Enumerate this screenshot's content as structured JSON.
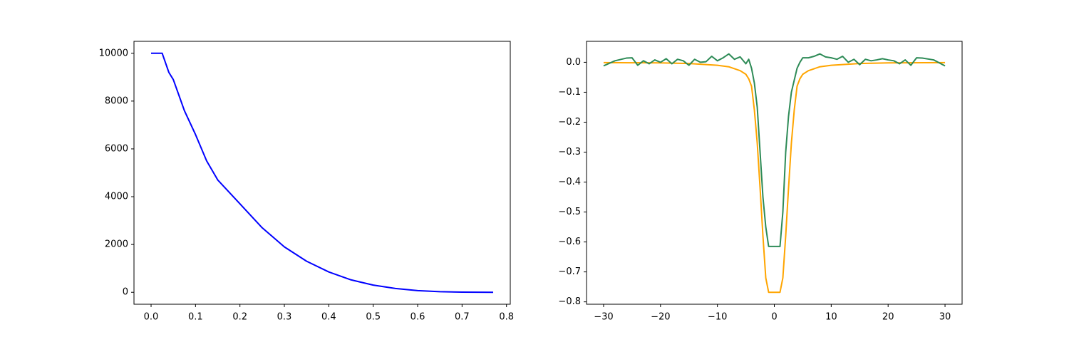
{
  "chart_data": [
    {
      "type": "line",
      "x": [
        0,
        0.025,
        0.04,
        0.05,
        0.075,
        0.1,
        0.125,
        0.15,
        0.175,
        0.2,
        0.25,
        0.3,
        0.35,
        0.4,
        0.45,
        0.5,
        0.55,
        0.6,
        0.65,
        0.7,
        0.77
      ],
      "series": [
        {
          "color": "#0000ff",
          "values": [
            10000,
            10000,
            9200,
            8900,
            7600,
            6600,
            5500,
            4700,
            4200,
            3700,
            2700,
            1900,
            1300,
            850,
            520,
            300,
            160,
            70,
            25,
            5,
            0
          ]
        }
      ],
      "xlim": [
        -0.0385,
        0.8085
      ],
      "xticks": [
        {
          "value": 0,
          "label": "0.0"
        },
        {
          "value": 0.1,
          "label": "0.1"
        },
        {
          "value": 0.2,
          "label": "0.2"
        },
        {
          "value": 0.3,
          "label": "0.3"
        },
        {
          "value": 0.4,
          "label": "0.4"
        },
        {
          "value": 0.5,
          "label": "0.5"
        },
        {
          "value": 0.6,
          "label": "0.6"
        },
        {
          "value": 0.7,
          "label": "0.7"
        },
        {
          "value": 0.8,
          "label": "0.8"
        }
      ],
      "ylim": [
        -500,
        10500
      ],
      "yticks": [
        0,
        2000,
        4000,
        6000,
        8000,
        10000
      ]
    },
    {
      "type": "line",
      "series": [
        {
          "color": "#ffa500",
          "x": [
            -30,
            -20,
            -15,
            -10,
            -8,
            -6,
            -5,
            -4.5,
            -4,
            -3.5,
            -3,
            -2.5,
            -2,
            -1.5,
            -1,
            1,
            1.5,
            2,
            2.5,
            3,
            3.5,
            4,
            4.5,
            5,
            6,
            8,
            10,
            15,
            20,
            30
          ],
          "values": [
            -0.001,
            -0.002,
            -0.004,
            -0.01,
            -0.015,
            -0.028,
            -0.04,
            -0.055,
            -0.08,
            -0.16,
            -0.27,
            -0.42,
            -0.58,
            -0.72,
            -0.768,
            -0.768,
            -0.72,
            -0.58,
            -0.42,
            -0.27,
            -0.16,
            -0.08,
            -0.055,
            -0.04,
            -0.028,
            -0.015,
            -0.01,
            -0.004,
            -0.002,
            -0.001
          ]
        },
        {
          "color": "#2e8b57",
          "x": [
            -30,
            -28,
            -26,
            -25,
            -24,
            -23,
            -22,
            -21,
            -20,
            -19,
            -18,
            -17,
            -16,
            -15,
            -14,
            -13,
            -12,
            -11,
            -10,
            -9,
            -8,
            -7,
            -6,
            -5,
            -4.5,
            -4,
            -3.5,
            -3,
            -2.5,
            -2,
            -1.5,
            -1,
            1,
            1.5,
            2,
            2.5,
            3,
            3.5,
            4,
            4.5,
            5,
            6,
            7,
            8,
            9,
            10,
            11,
            12,
            13,
            14,
            15,
            16,
            17,
            18,
            19,
            20,
            21,
            22,
            23,
            24,
            25,
            26,
            28,
            30
          ],
          "values": [
            -0.012,
            0.005,
            0.014,
            0.015,
            -0.01,
            0.005,
            -0.005,
            0.008,
            0.0,
            0.012,
            -0.005,
            0.01,
            0.005,
            -0.01,
            0.01,
            0.0,
            0.002,
            0.02,
            0.005,
            0.015,
            0.028,
            0.01,
            0.018,
            -0.005,
            0.01,
            -0.02,
            -0.07,
            -0.15,
            -0.3,
            -0.45,
            -0.55,
            -0.615,
            -0.615,
            -0.5,
            -0.3,
            -0.18,
            -0.1,
            -0.06,
            -0.02,
            0.0,
            0.015,
            0.015,
            0.02,
            0.028,
            0.018,
            0.015,
            0.01,
            0.02,
            0.0,
            0.01,
            -0.008,
            0.01,
            0.005,
            0.008,
            0.012,
            0.008,
            0.005,
            -0.005,
            0.008,
            -0.01,
            0.015,
            0.014,
            0.008,
            -0.012
          ]
        }
      ],
      "xlim": [
        -33,
        33
      ],
      "xticks": [
        {
          "value": -30,
          "label": "−30"
        },
        {
          "value": -20,
          "label": "−20"
        },
        {
          "value": -10,
          "label": "−10"
        },
        0,
        10,
        20,
        30
      ],
      "ylim": [
        -0.808,
        0.07
      ],
      "yticks": [
        {
          "value": 0,
          "label": "0.0"
        },
        {
          "value": -0.1,
          "label": "−0.1"
        },
        {
          "value": -0.2,
          "label": "−0.2"
        },
        {
          "value": -0.3,
          "label": "−0.3"
        },
        {
          "value": -0.4,
          "label": "−0.4"
        },
        {
          "value": -0.5,
          "label": "−0.5"
        },
        {
          "value": -0.6,
          "label": "−0.6"
        },
        {
          "value": -0.7,
          "label": "−0.7"
        },
        {
          "value": -0.8,
          "label": "−0.8"
        }
      ]
    }
  ]
}
